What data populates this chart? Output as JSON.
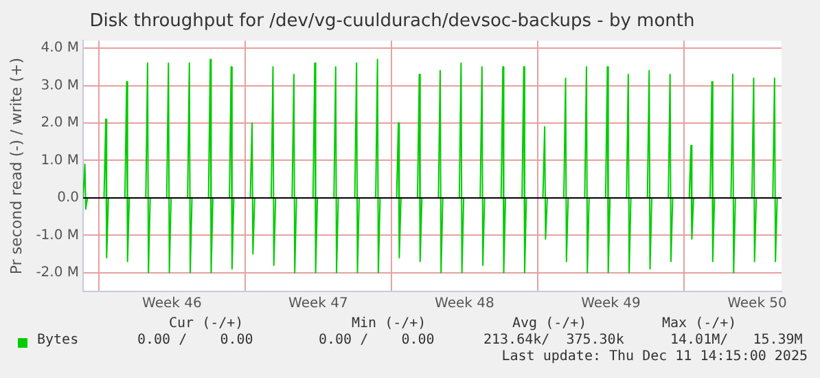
{
  "chart_data": {
    "type": "line",
    "title": "Disk throughput for /dev/vg-cuuldurach/devsoc-backups - by month",
    "ylabel": "Pr second read (-) / write (+)",
    "x": [
      "2025-11-09T06:00",
      "2025-11-09T08:00",
      "2025-11-09T09:00",
      "2025-11-09T11:00",
      "2025-11-10T06:00",
      "2025-11-10T08:00",
      "2025-11-10T09:00",
      "2025-11-10T11:00",
      "2025-11-11T06:00",
      "2025-11-11T08:00",
      "2025-11-11T09:00",
      "2025-11-11T11:00",
      "2025-11-12T06:00",
      "2025-11-12T08:00",
      "2025-11-12T09:00",
      "2025-11-12T11:00",
      "2025-11-13T06:00",
      "2025-11-13T08:00",
      "2025-11-13T09:00",
      "2025-11-13T11:00",
      "2025-11-14T06:00",
      "2025-11-14T08:00",
      "2025-11-14T09:00",
      "2025-11-14T11:00",
      "2025-11-15T06:00",
      "2025-11-15T08:00",
      "2025-11-15T09:00",
      "2025-11-15T11:00",
      "2025-11-16T06:00",
      "2025-11-16T08:00",
      "2025-11-16T09:00",
      "2025-11-16T11:00",
      "2025-11-17T06:00",
      "2025-11-17T08:00",
      "2025-11-17T09:00",
      "2025-11-17T11:00",
      "2025-11-18T06:00",
      "2025-11-18T08:00",
      "2025-11-18T09:00",
      "2025-11-18T11:00",
      "2025-11-19T06:00",
      "2025-11-19T08:00",
      "2025-11-19T09:00",
      "2025-11-19T11:00",
      "2025-11-20T06:00",
      "2025-11-20T08:00",
      "2025-11-20T09:00",
      "2025-11-20T11:00",
      "2025-11-21T06:00",
      "2025-11-21T08:00",
      "2025-11-21T09:00",
      "2025-11-21T11:00",
      "2025-11-22T06:00",
      "2025-11-22T08:00",
      "2025-11-22T09:00",
      "2025-11-22T11:00",
      "2025-11-23T06:00",
      "2025-11-23T08:00",
      "2025-11-23T09:00",
      "2025-11-23T11:00",
      "2025-11-24T06:00",
      "2025-11-24T08:00",
      "2025-11-24T09:00",
      "2025-11-24T11:00",
      "2025-11-25T06:00",
      "2025-11-25T08:00",
      "2025-11-25T09:00",
      "2025-11-25T11:00",
      "2025-11-26T06:00",
      "2025-11-26T08:00",
      "2025-11-26T09:00",
      "2025-11-26T11:00",
      "2025-11-27T06:00",
      "2025-11-27T08:00",
      "2025-11-27T09:00",
      "2025-11-27T11:00",
      "2025-11-28T06:00",
      "2025-11-28T08:00",
      "2025-11-28T09:00",
      "2025-11-28T11:00",
      "2025-11-29T06:00",
      "2025-11-29T08:00",
      "2025-11-29T09:00",
      "2025-11-29T11:00",
      "2025-11-30T06:00",
      "2025-11-30T08:00",
      "2025-11-30T09:00",
      "2025-11-30T11:00",
      "2025-12-01T06:00",
      "2025-12-01T08:00",
      "2025-12-01T09:00",
      "2025-12-01T11:00",
      "2025-12-02T06:00",
      "2025-12-02T08:00",
      "2025-12-02T09:00",
      "2025-12-02T11:00",
      "2025-12-03T06:00",
      "2025-12-03T08:00",
      "2025-12-03T09:00",
      "2025-12-03T11:00",
      "2025-12-04T06:00",
      "2025-12-04T08:00",
      "2025-12-04T09:00",
      "2025-12-04T11:00",
      "2025-12-05T06:00",
      "2025-12-05T08:00",
      "2025-12-05T09:00",
      "2025-12-05T11:00",
      "2025-12-06T06:00",
      "2025-12-06T08:00",
      "2025-12-06T09:00",
      "2025-12-06T11:00",
      "2025-12-07T06:00",
      "2025-12-07T08:00",
      "2025-12-07T09:00",
      "2025-12-07T11:00",
      "2025-12-08T06:00",
      "2025-12-08T08:00",
      "2025-12-08T09:00",
      "2025-12-08T11:00",
      "2025-12-09T06:00",
      "2025-12-09T08:00",
      "2025-12-09T09:00",
      "2025-12-09T11:00",
      "2025-12-10T06:00",
      "2025-12-10T08:00",
      "2025-12-10T09:00",
      "2025-12-10T11:00",
      "2025-12-11T06:00",
      "2025-12-11T08:00",
      "2025-12-11T09:00",
      "2025-12-11T11:00",
      "2025-12-12T06:00",
      "2025-12-12T08:00",
      "2025-12-12T09:00",
      "2025-12-12T11:00"
    ],
    "series": [
      {
        "name": "Bytes",
        "color": "#00cc00",
        "values": [
          0,
          0.9,
          -0.3,
          0,
          0,
          2.1,
          -1.6,
          0,
          0,
          3.1,
          -1.7,
          0,
          0,
          3.6,
          -2.0,
          0,
          0,
          3.6,
          -2.0,
          0,
          0,
          3.6,
          -2.0,
          0,
          0,
          3.7,
          -2.0,
          0,
          0,
          3.5,
          -1.9,
          0,
          0,
          2.0,
          -1.5,
          0,
          0,
          3.5,
          -1.8,
          0,
          0,
          3.3,
          -2.0,
          0,
          0,
          3.6,
          -2.0,
          0,
          0,
          3.5,
          -2.0,
          0,
          0,
          3.6,
          -2.0,
          0,
          0,
          3.7,
          -2.0,
          0,
          0,
          2.0,
          -1.6,
          0,
          0,
          3.3,
          -1.7,
          0,
          0,
          3.4,
          -2.0,
          0,
          0,
          3.6,
          -2.0,
          0,
          0,
          3.5,
          -1.8,
          0,
          0,
          3.5,
          -2.0,
          0,
          0,
          3.5,
          -2.0,
          0,
          0,
          1.9,
          -1.1,
          0,
          0,
          3.2,
          -1.7,
          0,
          0,
          3.5,
          -2.0,
          0,
          0,
          3.5,
          -2.0,
          0,
          0,
          3.3,
          -2.0,
          0,
          0,
          3.4,
          -1.9,
          0,
          0,
          3.3,
          -1.7,
          0,
          0,
          1.4,
          -1.1,
          0,
          0,
          3.1,
          -1.7,
          0,
          0,
          3.3,
          -2.0,
          0,
          0,
          3.2,
          -1.7,
          0,
          0,
          3.2,
          -1.7,
          0
        ]
      }
    ],
    "xlim": [
      "2025-11-09T06:00",
      "2025-12-12T16:00"
    ],
    "xticks": [
      {
        "value": "2025-11-10",
        "label": null
      },
      {
        "value": "2025-11-13T12:00",
        "label": "Week 46"
      },
      {
        "value": "2025-11-17",
        "label": null
      },
      {
        "value": "2025-11-20T12:00",
        "label": "Week 47"
      },
      {
        "value": "2025-11-24",
        "label": null
      },
      {
        "value": "2025-11-27T12:00",
        "label": "Week 48"
      },
      {
        "value": "2025-12-01",
        "label": null
      },
      {
        "value": "2025-12-04T12:00",
        "label": "Week 49"
      },
      {
        "value": "2025-12-08",
        "label": null
      },
      {
        "value": "2025-12-11T12:00",
        "label": "Week 50"
      }
    ],
    "ylim": [
      -2.5,
      4.2
    ],
    "yticks": [
      {
        "value": -2,
        "label": "-2.0 M"
      },
      {
        "value": -1,
        "label": "-1.0 M"
      },
      {
        "value": 0,
        "label": "0.0"
      },
      {
        "value": 1,
        "label": "1.0 M"
      },
      {
        "value": 2,
        "label": "2.0 M"
      },
      {
        "value": 3,
        "label": "3.0 M"
      },
      {
        "value": 4,
        "label": "4.0 M"
      }
    ],
    "ref_lines": [
      {
        "axis": "y",
        "value": 0,
        "color": "#000000"
      }
    ],
    "grid": true,
    "legend": "bottom left",
    "marker": "none",
    "line_style": "solid",
    "annotations": [
      "Cur (-/+)",
      "Min (-/+)",
      "Avg (-/+)",
      "Max (-/+)",
      "0.00 /    0.00",
      "0.00 /    0.00",
      "213.64k/  375.30k",
      "14.01M/   15.39M",
      "Last update: Thu Dec 11 14:15:00 2025"
    ]
  }
}
